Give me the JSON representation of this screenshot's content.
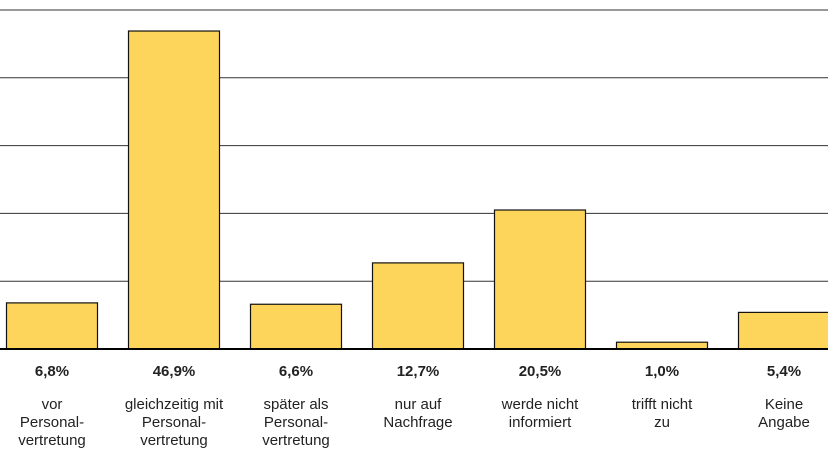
{
  "chart_data": {
    "type": "bar",
    "categories": [
      "vor\nPersonal-\nvertretung",
      "gleichzeitig mit\nPersonal-\nvertretung",
      "später als\nPersonal-\nvertretung",
      "nur auf\nNachfrage",
      "werde nicht\ninformiert",
      "trifft nicht\nzu",
      "Keine\nAngabe"
    ],
    "values": [
      6.8,
      46.9,
      6.6,
      12.7,
      20.5,
      1.0,
      5.4
    ],
    "value_labels": [
      "6,8%",
      "46,9%",
      "6,6%",
      "12,7%",
      "20,5%",
      "1,0%",
      "5,4%"
    ],
    "color": "#fdd55a",
    "ylim": [
      0,
      50
    ],
    "yticks": [
      0,
      10,
      20,
      30,
      40,
      50
    ],
    "grid": true
  }
}
